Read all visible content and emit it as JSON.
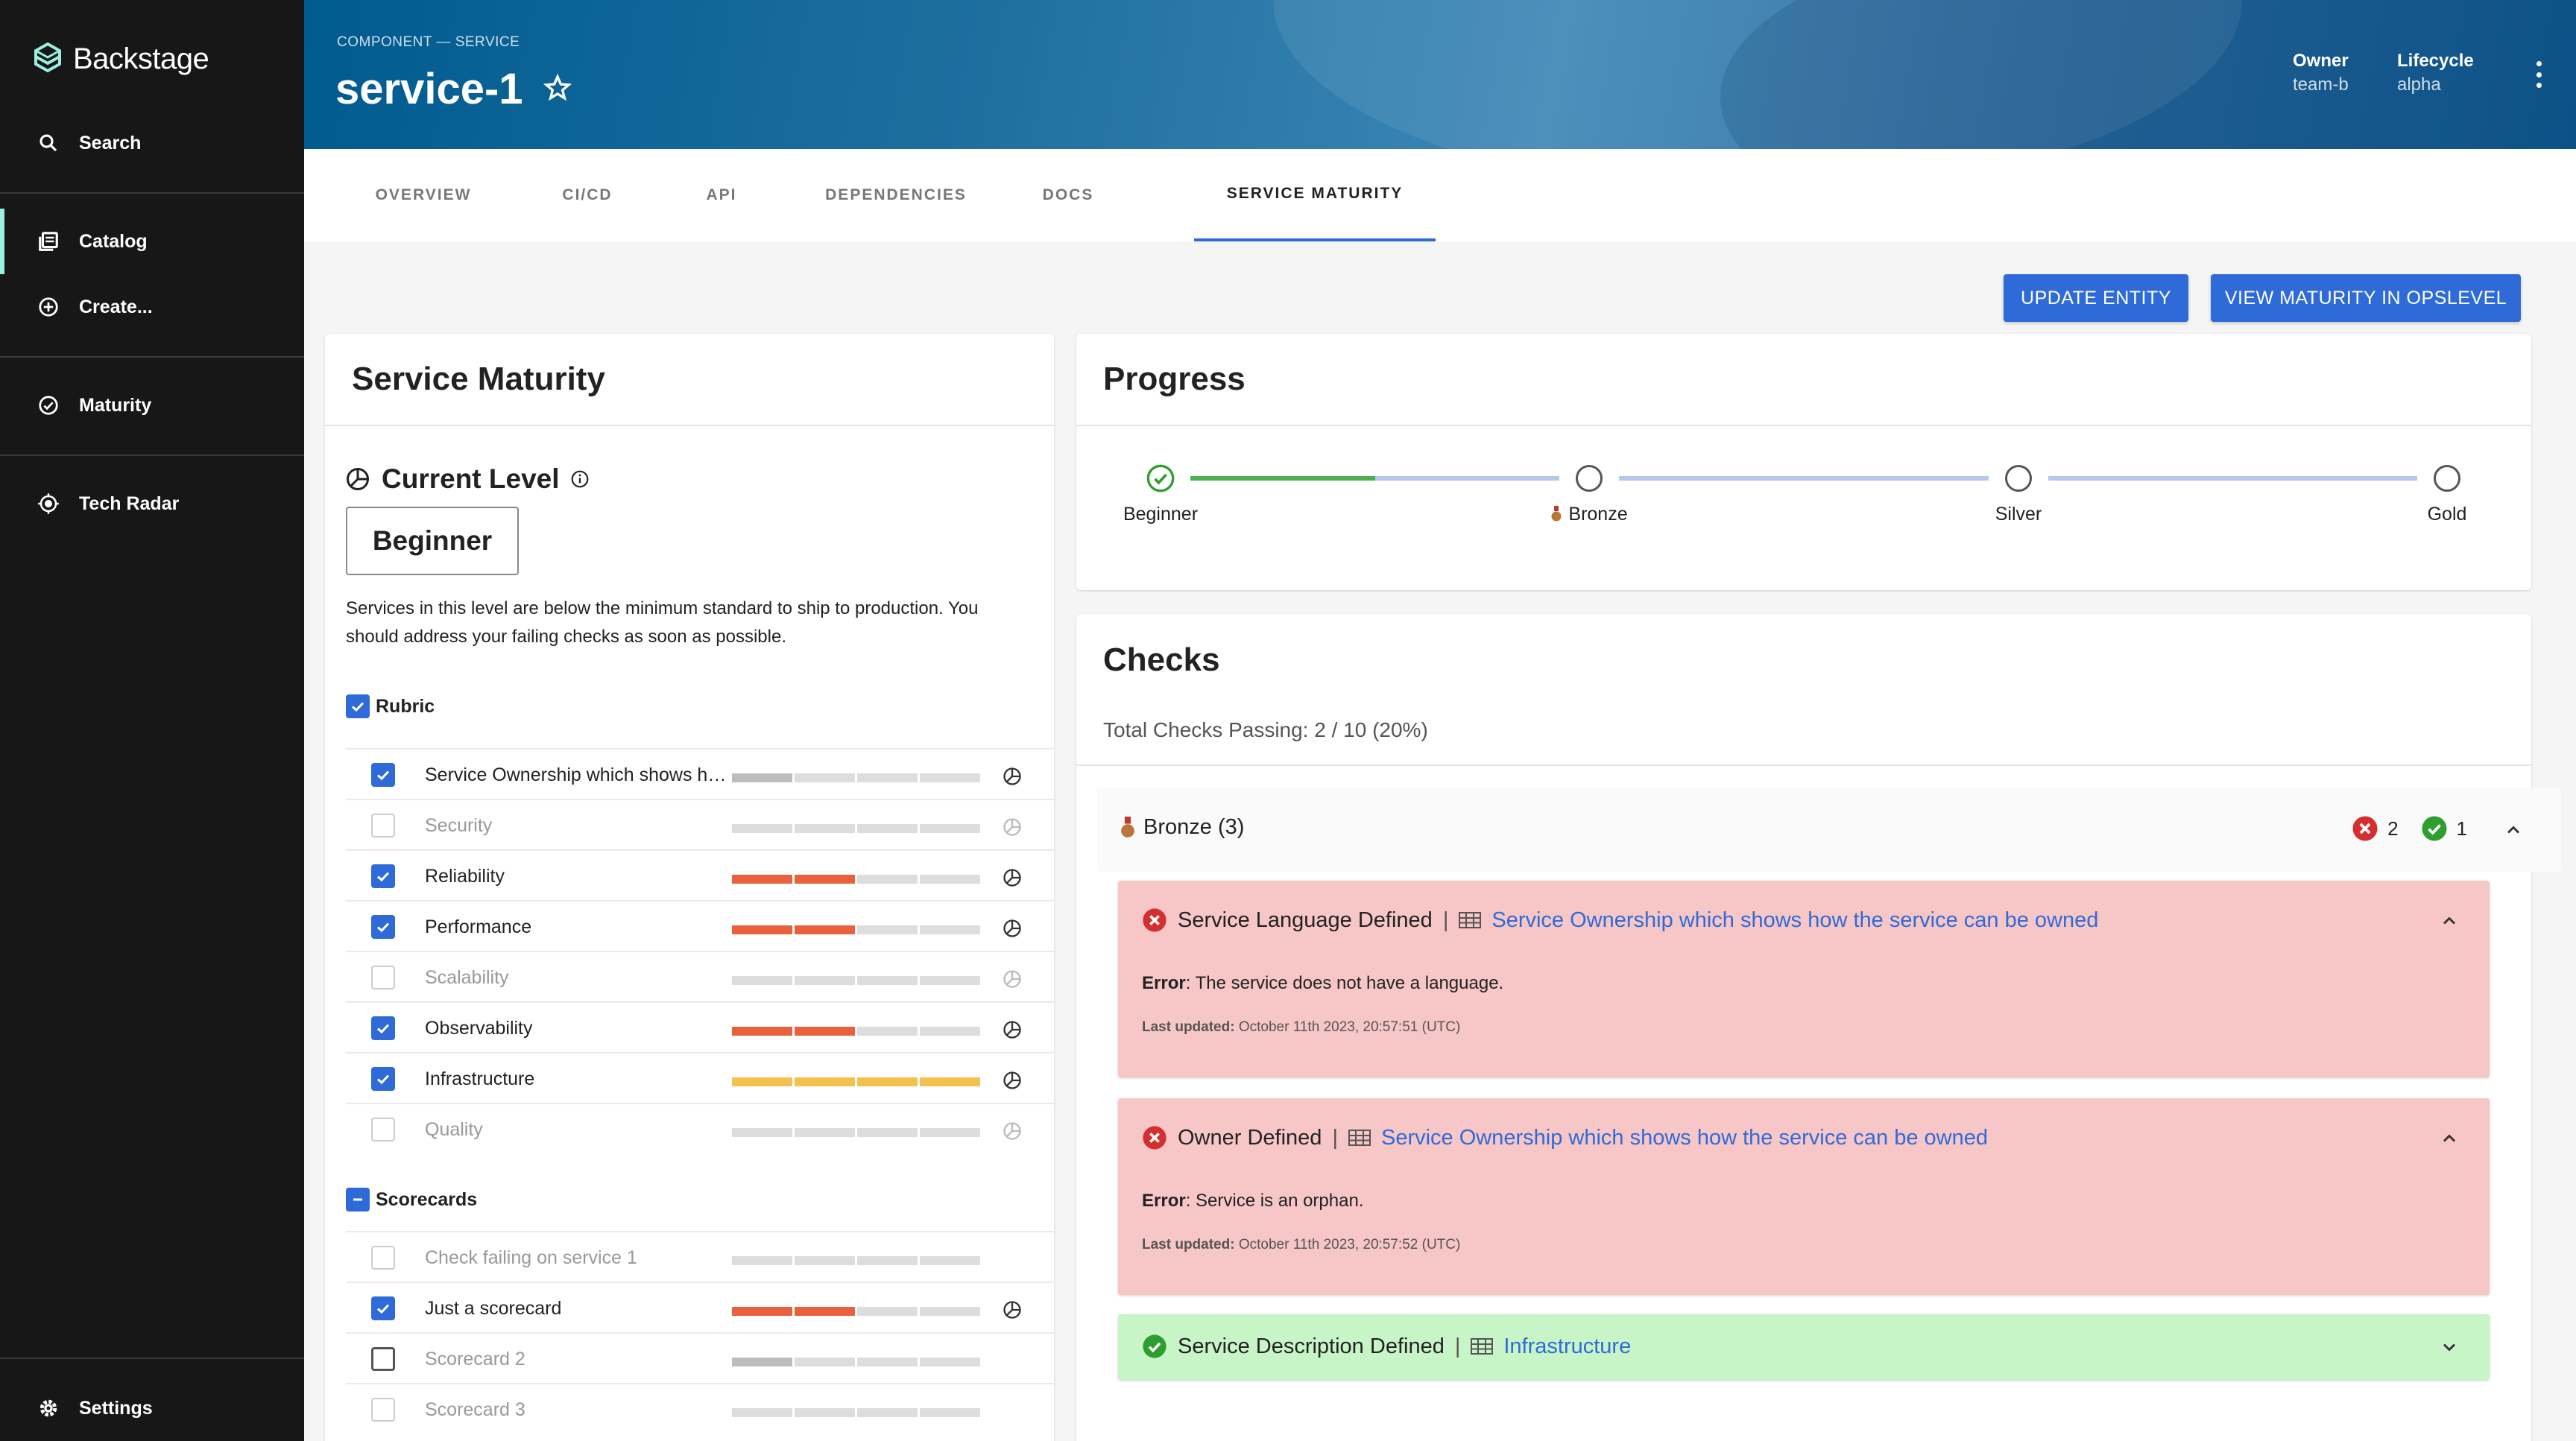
{
  "sidebar": {
    "brand": "Backstage",
    "items": [
      {
        "label": "Search"
      },
      {
        "label": "Catalog"
      },
      {
        "label": "Create..."
      },
      {
        "label": "Maturity"
      },
      {
        "label": "Tech Radar"
      },
      {
        "label": "Settings"
      }
    ]
  },
  "header": {
    "breadcrumb": "COMPONENT — SERVICE",
    "title": "service-1",
    "owner_label": "Owner",
    "owner_value": "team-b",
    "lifecycle_label": "Lifecycle",
    "lifecycle_value": "alpha"
  },
  "tabs": [
    "OVERVIEW",
    "CI/CD",
    "API",
    "DEPENDENCIES",
    "DOCS",
    "SERVICE MATURITY"
  ],
  "actions": {
    "update": "UPDATE ENTITY",
    "view": "VIEW MATURITY IN OPSLEVEL"
  },
  "maturity": {
    "title": "Service Maturity",
    "current_level_label": "Current Level",
    "level": "Beginner",
    "description": "Services in this level are below the minimum standard to ship to production. You should address your failing checks as soon as possible.",
    "rubric_label": "Rubric",
    "rubric": [
      {
        "label": "Service Ownership which shows how the service can be owned",
        "checked": true,
        "segments": 1,
        "color": "#bdbdbd"
      },
      {
        "label": "Security",
        "checked": false,
        "segments": 0,
        "color": "#bdbdbd"
      },
      {
        "label": "Reliability",
        "checked": true,
        "segments": 2,
        "color": "#e8603c"
      },
      {
        "label": "Performance",
        "checked": true,
        "segments": 2,
        "color": "#e8603c"
      },
      {
        "label": "Scalability",
        "checked": false,
        "segments": 0,
        "color": "#bdbdbd"
      },
      {
        "label": "Observability",
        "checked": true,
        "segments": 2,
        "color": "#e8603c"
      },
      {
        "label": "Infrastructure",
        "checked": true,
        "segments": 4,
        "color": "#f2c14e"
      },
      {
        "label": "Quality",
        "checked": false,
        "segments": 0,
        "color": "#bdbdbd"
      }
    ],
    "scorecards_label": "Scorecards",
    "scorecards": [
      {
        "label": "Check failing on service 1",
        "checked": false,
        "segments": 0,
        "color": "#bdbdbd",
        "pie": false
      },
      {
        "label": "Just a scorecard",
        "checked": true,
        "segments": 2,
        "color": "#e8603c",
        "pie": true
      },
      {
        "label": "Scorecard 2",
        "checked": false,
        "dark": true,
        "segments": 1,
        "color": "#bdbdbd",
        "pie": false
      },
      {
        "label": "Scorecard 3",
        "checked": false,
        "segments": 0,
        "color": "#bdbdbd",
        "pie": false
      }
    ]
  },
  "progress": {
    "title": "Progress",
    "levels": [
      "Beginner",
      "Bronze",
      "Silver",
      "Gold"
    ],
    "achieved_fraction": 0.5
  },
  "checks": {
    "title": "Checks",
    "summary": "Total Checks Passing: 2 / 10 (20%)",
    "group_label": "Bronze (3)",
    "fail_count": "2",
    "pass_count": "1",
    "items": [
      {
        "status": "fail",
        "name": "Service Language Defined",
        "category": "Service Ownership which shows how the service can be owned",
        "error_label": "Error",
        "error": ": The service does not have a language.",
        "updated_label": "Last updated:",
        "updated": " October 11th 2023, 20:57:51 (UTC)"
      },
      {
        "status": "fail",
        "name": "Owner Defined",
        "category": "Service Ownership which shows how the service can be owned",
        "error_label": "Error",
        "error": ": Service is an orphan.",
        "updated_label": "Last updated:",
        "updated": " October 11th 2023, 20:57:52 (UTC)"
      },
      {
        "status": "pass",
        "name": "Service Description Defined",
        "category": "Infrastructure"
      }
    ]
  },
  "colors": {
    "accent": "#2f6bd8",
    "fail_bg": "#f7c6c6",
    "pass_bg": "#c8f5c8",
    "fail_icon": "#d32f2f",
    "pass_icon": "#2e9e2e"
  }
}
